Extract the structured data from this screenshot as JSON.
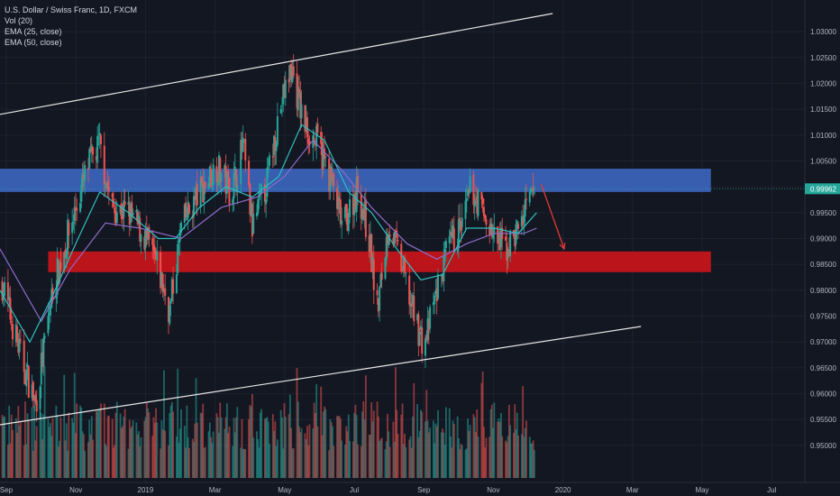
{
  "legend": {
    "title": "U.S. Dollar / Swiss Franc, 1D, FXCM",
    "vol": "Vol (20)",
    "ema25": "EMA (25, close)",
    "ema50": "EMA (50, close)"
  },
  "colors": {
    "background": "#131722",
    "up": "#26a69a",
    "down": "#ef5350",
    "ema25": "#2dbfbd",
    "ema50": "#8e6cc9",
    "blue_zone": "#3a62b8",
    "red_zone": "#c4141a",
    "trendline": "#e8e8e8",
    "arrow": "#e53935",
    "price_tag": "#26a69a"
  },
  "chart_data": {
    "type": "candlestick",
    "y_range": [
      0.9465,
      1.0335
    ],
    "y_ticks": [
      "1.03000",
      "1.02500",
      "1.02000",
      "1.01500",
      "1.01000",
      "1.00500",
      "1.00000",
      "0.99500",
      "0.99000",
      "0.98500",
      "0.98000",
      "0.97500",
      "0.97000",
      "0.96500",
      "0.96000",
      "0.95500",
      "0.95000"
    ],
    "x_ticks": [
      "Sep",
      "Nov",
      "2019",
      "Mar",
      "May",
      "Jul",
      "Sep",
      "Nov",
      "2020",
      "Mar",
      "May",
      "Jul"
    ],
    "last_price": "0.99962",
    "close_path": [
      [
        "2018-08-20",
        0.983
      ],
      [
        "2018-09-05",
        0.969
      ],
      [
        "2018-09-20",
        0.958
      ],
      [
        "2018-10-05",
        0.98
      ],
      [
        "2018-10-20",
        0.992
      ],
      [
        "2018-11-05",
        1.004
      ],
      [
        "2018-11-15",
        1.008
      ],
      [
        "2018-11-25",
        0.996
      ],
      [
        "2018-12-10",
        0.995
      ],
      [
        "2018-12-25",
        0.99
      ],
      [
        "2019-01-05",
        0.984
      ],
      [
        "2019-01-15",
        0.976
      ],
      [
        "2019-01-25",
        0.992
      ],
      [
        "2019-02-10",
        0.999
      ],
      [
        "2019-02-25",
        1.004
      ],
      [
        "2019-03-10",
        0.999
      ],
      [
        "2019-03-20",
        1.008
      ],
      [
        "2019-03-28",
        0.992
      ],
      [
        "2019-04-10",
        1.001
      ],
      [
        "2019-04-20",
        1.014
      ],
      [
        "2019-05-01",
        1.023
      ],
      [
        "2019-05-12",
        1.012
      ],
      [
        "2019-05-25",
        1.008
      ],
      [
        "2019-06-05",
        1.001
      ],
      [
        "2019-06-15",
        0.992
      ],
      [
        "2019-06-28",
        1.0
      ],
      [
        "2019-07-08",
        0.99
      ],
      [
        "2019-07-15",
        0.976
      ],
      [
        "2019-07-25",
        0.993
      ],
      [
        "2019-08-05",
        0.985
      ],
      [
        "2019-08-15",
        0.976
      ],
      [
        "2019-08-25",
        0.969
      ],
      [
        "2019-09-05",
        0.98
      ],
      [
        "2019-09-15",
        0.988
      ],
      [
        "2019-09-28",
        0.993
      ],
      [
        "2019-10-05",
        1.0
      ],
      [
        "2019-10-15",
        0.995
      ],
      [
        "2019-10-25",
        0.99
      ],
      [
        "2019-11-05",
        0.988
      ],
      [
        "2019-11-15",
        0.992
      ],
      [
        "2019-11-25",
        0.997
      ],
      [
        "2019-12-01",
        1.0
      ]
    ],
    "ema25_path": [
      [
        "2018-08-20",
        0.98
      ],
      [
        "2018-09-15",
        0.97
      ],
      [
        "2018-10-05",
        0.979
      ],
      [
        "2018-10-25",
        0.989
      ],
      [
        "2018-11-15",
        0.999
      ],
      [
        "2018-12-10",
        0.995
      ],
      [
        "2019-01-05",
        0.99
      ],
      [
        "2019-01-20",
        0.99
      ],
      [
        "2019-02-10",
        0.996
      ],
      [
        "2019-03-05",
        1.0
      ],
      [
        "2019-03-28",
        0.998
      ],
      [
        "2019-04-20",
        1.002
      ],
      [
        "2019-05-10",
        1.012
      ],
      [
        "2019-05-30",
        1.009
      ],
      [
        "2019-06-20",
        0.999
      ],
      [
        "2019-07-10",
        0.995
      ],
      [
        "2019-08-01",
        0.988
      ],
      [
        "2019-08-22",
        0.982
      ],
      [
        "2019-09-10",
        0.983
      ],
      [
        "2019-10-01",
        0.992
      ],
      [
        "2019-10-25",
        0.992
      ],
      [
        "2019-11-15",
        0.991
      ],
      [
        "2019-12-01",
        0.995
      ]
    ],
    "ema50_path": [
      [
        "2018-08-20",
        0.988
      ],
      [
        "2018-09-25",
        0.974
      ],
      [
        "2018-10-20",
        0.984
      ],
      [
        "2018-11-20",
        0.993
      ],
      [
        "2018-12-20",
        0.992
      ],
      [
        "2019-01-25",
        0.99
      ],
      [
        "2019-03-01",
        0.996
      ],
      [
        "2019-04-01",
        0.998
      ],
      [
        "2019-04-25",
        1.002
      ],
      [
        "2019-05-20",
        1.009
      ],
      [
        "2019-06-15",
        1.003
      ],
      [
        "2019-07-10",
        0.996
      ],
      [
        "2019-08-10",
        0.989
      ],
      [
        "2019-09-05",
        0.986
      ],
      [
        "2019-10-01",
        0.989
      ],
      [
        "2019-10-25",
        0.991
      ],
      [
        "2019-11-20",
        0.991
      ],
      [
        "2019-12-01",
        0.992
      ]
    ],
    "zones": [
      {
        "name": "resistance",
        "from": "2018-08-20",
        "to": "2020-05-01",
        "low": 0.999,
        "high": 1.0035
      },
      {
        "name": "support",
        "from": "2018-10-01",
        "to": "2020-05-01",
        "low": 0.9835,
        "high": 0.9875
      }
    ],
    "trendlines": [
      {
        "name": "upper-channel",
        "x1": "2018-08-20",
        "y1": 1.014,
        "x2": "2019-12-15",
        "y2": 1.0335
      },
      {
        "name": "lower-channel",
        "x1": "2018-08-20",
        "y1": 0.954,
        "x2": "2020-03-01",
        "y2": 0.973
      }
    ],
    "projection_arrow": {
      "x1": "2019-12-05",
      "y1": 1.0005,
      "x2": "2019-12-25",
      "y2": 0.988
    }
  }
}
